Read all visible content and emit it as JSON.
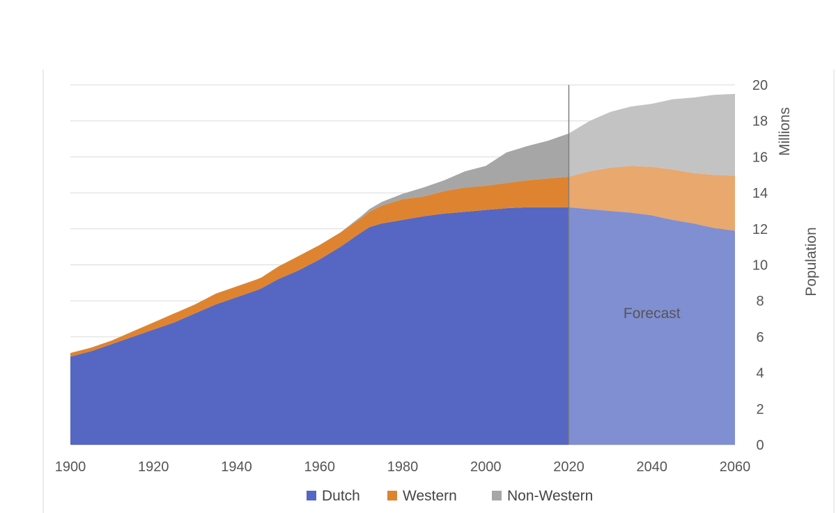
{
  "chart_data": {
    "type": "area",
    "stacked": true,
    "title": "",
    "xlabel": "",
    "ylabel": "Population",
    "yunit": "Millions",
    "xlim": [
      1900,
      2060
    ],
    "ylim": [
      0,
      20
    ],
    "xticks": [
      1900,
      1920,
      1940,
      1960,
      1980,
      2000,
      2020,
      2040,
      2060
    ],
    "yticks": [
      0,
      2,
      4,
      6,
      8,
      10,
      12,
      14,
      16,
      18,
      20
    ],
    "y_axis_side": "right",
    "grid": true,
    "forecast_start": 2020,
    "forecast_label": "Forecast",
    "x": [
      1900,
      1905,
      1910,
      1915,
      1920,
      1925,
      1930,
      1935,
      1940,
      1945,
      1946,
      1950,
      1955,
      1960,
      1965,
      1970,
      1972,
      1975,
      1980,
      1985,
      1990,
      1995,
      2000,
      2005,
      2010,
      2015,
      2020,
      2025,
      2030,
      2035,
      2040,
      2045,
      2050,
      2055,
      2060
    ],
    "series": [
      {
        "name": "Dutch",
        "color": "#5567c3",
        "forecast_color": "#808fd2",
        "values": [
          4.9,
          5.2,
          5.6,
          6.0,
          6.4,
          6.8,
          7.3,
          7.8,
          8.2,
          8.6,
          8.7,
          9.2,
          9.7,
          10.3,
          11.0,
          11.8,
          12.1,
          12.3,
          12.5,
          12.7,
          12.85,
          12.95,
          13.05,
          13.15,
          13.2,
          13.2,
          13.2,
          13.1,
          13.0,
          12.9,
          12.75,
          12.5,
          12.3,
          12.05,
          11.9
        ]
      },
      {
        "name": "Western",
        "color": "#de8430",
        "forecast_color": "#e8a86e",
        "values": [
          0.2,
          0.2,
          0.2,
          0.3,
          0.4,
          0.5,
          0.5,
          0.6,
          0.6,
          0.6,
          0.6,
          0.7,
          0.8,
          0.8,
          0.8,
          0.8,
          0.85,
          1.0,
          1.15,
          1.1,
          1.25,
          1.35,
          1.35,
          1.4,
          1.5,
          1.6,
          1.7,
          2.1,
          2.4,
          2.6,
          2.7,
          2.8,
          2.8,
          2.95,
          3.05
        ]
      },
      {
        "name": "Non-Western",
        "color": "#a6a6a6",
        "forecast_color": "#c3c3c3",
        "values": [
          0,
          0,
          0,
          0,
          0,
          0,
          0,
          0,
          0,
          0,
          0,
          0,
          0,
          0,
          0,
          0.1,
          0.15,
          0.2,
          0.3,
          0.5,
          0.6,
          0.9,
          1.1,
          1.7,
          1.9,
          2.1,
          2.4,
          2.8,
          3.1,
          3.3,
          3.5,
          3.9,
          4.2,
          4.45,
          4.55
        ]
      }
    ]
  }
}
